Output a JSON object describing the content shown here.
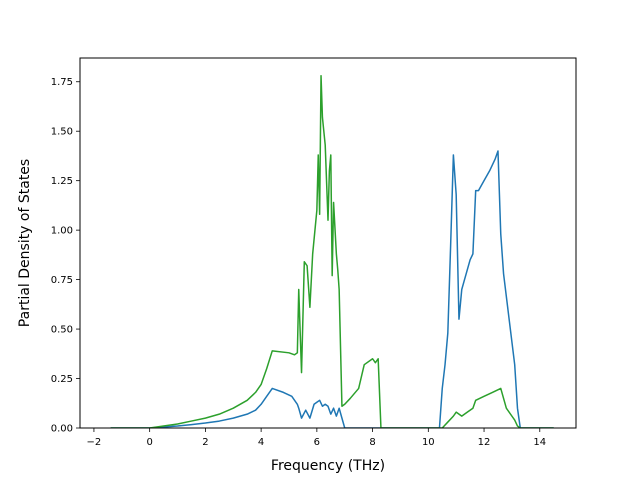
{
  "chart_data": {
    "type": "line",
    "xlabel": "Frequency (THz)",
    "ylabel": "Partial Density of States",
    "xlim": [
      -2.5,
      15.3
    ],
    "ylim": [
      0,
      1.87
    ],
    "grid": false,
    "x_ticks": [
      -2,
      0,
      2,
      4,
      6,
      8,
      10,
      12,
      14
    ],
    "y_ticks": [
      0.0,
      0.25,
      0.5,
      0.75,
      1.0,
      1.25,
      1.5,
      1.75
    ],
    "x_tick_labels": [
      "−2",
      "0",
      "2",
      "4",
      "6",
      "8",
      "10",
      "12",
      "14"
    ],
    "y_tick_labels": [
      "0.00",
      "0.25",
      "0.50",
      "0.75",
      "1.00",
      "1.25",
      "1.50",
      "1.75"
    ],
    "series": [
      {
        "color": "#1f77b4",
        "x": [
          -1.4,
          0.0,
          0.5,
          1.0,
          1.5,
          2.0,
          2.5,
          3.0,
          3.5,
          3.8,
          4.0,
          4.2,
          4.4,
          4.8,
          5.1,
          5.2,
          5.3,
          5.35,
          5.45,
          5.6,
          5.75,
          5.9,
          6.0,
          6.1,
          6.2,
          6.3,
          6.4,
          6.5,
          6.6,
          6.7,
          6.8,
          6.9,
          7.0,
          7.2,
          7.6,
          8.0,
          8.2,
          8.3,
          9.0,
          10.0,
          10.4,
          10.5,
          10.6,
          10.7,
          10.8,
          10.9,
          11.0,
          11.1,
          11.2,
          11.3,
          11.5,
          11.6,
          11.7,
          11.8,
          12.0,
          12.2,
          12.4,
          12.5,
          12.6,
          12.7,
          12.9,
          13.1,
          13.2,
          13.3,
          14.5
        ],
        "y": [
          0.0,
          0.0,
          0.005,
          0.01,
          0.017,
          0.025,
          0.035,
          0.05,
          0.07,
          0.09,
          0.12,
          0.16,
          0.2,
          0.18,
          0.16,
          0.14,
          0.12,
          0.1,
          0.05,
          0.09,
          0.05,
          0.12,
          0.13,
          0.14,
          0.11,
          0.12,
          0.11,
          0.07,
          0.1,
          0.06,
          0.1,
          0.05,
          0.0,
          0.0,
          0.0,
          0.0,
          0.0,
          0.0,
          0.0,
          0.0,
          0.0,
          0.2,
          0.32,
          0.48,
          0.92,
          1.38,
          1.18,
          0.55,
          0.7,
          0.75,
          0.85,
          0.88,
          1.2,
          1.2,
          1.25,
          1.3,
          1.36,
          1.4,
          0.98,
          0.78,
          0.55,
          0.32,
          0.1,
          0.0,
          0.0
        ]
      },
      {
        "color": "#2ca02c",
        "x": [
          -1.4,
          0.0,
          0.5,
          1.0,
          1.5,
          2.0,
          2.5,
          3.0,
          3.5,
          3.8,
          4.0,
          4.2,
          4.4,
          5.0,
          5.2,
          5.3,
          5.35,
          5.45,
          5.55,
          5.65,
          5.75,
          5.85,
          6.0,
          6.05,
          6.1,
          6.15,
          6.2,
          6.3,
          6.4,
          6.45,
          6.5,
          6.55,
          6.6,
          6.7,
          6.75,
          6.8,
          6.9,
          7.0,
          7.2,
          7.5,
          7.7,
          8.0,
          8.1,
          8.2,
          8.3,
          9.0,
          10.0,
          10.5,
          10.7,
          10.9,
          11.0,
          11.2,
          11.4,
          11.6,
          11.7,
          12.0,
          12.3,
          12.6,
          12.8,
          13.0,
          13.1,
          13.2,
          13.3,
          14.5
        ],
        "y": [
          0.0,
          0.0,
          0.01,
          0.02,
          0.035,
          0.05,
          0.07,
          0.1,
          0.14,
          0.18,
          0.22,
          0.3,
          0.39,
          0.38,
          0.37,
          0.38,
          0.7,
          0.28,
          0.84,
          0.82,
          0.61,
          0.88,
          1.1,
          1.38,
          1.08,
          1.78,
          1.57,
          1.43,
          1.05,
          1.3,
          1.38,
          0.77,
          1.14,
          0.88,
          0.8,
          0.7,
          0.11,
          0.12,
          0.15,
          0.2,
          0.32,
          0.35,
          0.33,
          0.35,
          0.0,
          0.0,
          0.0,
          0.0,
          0.03,
          0.06,
          0.08,
          0.06,
          0.08,
          0.1,
          0.14,
          0.16,
          0.18,
          0.2,
          0.1,
          0.06,
          0.04,
          0.01,
          0.0,
          0.0
        ]
      }
    ]
  }
}
